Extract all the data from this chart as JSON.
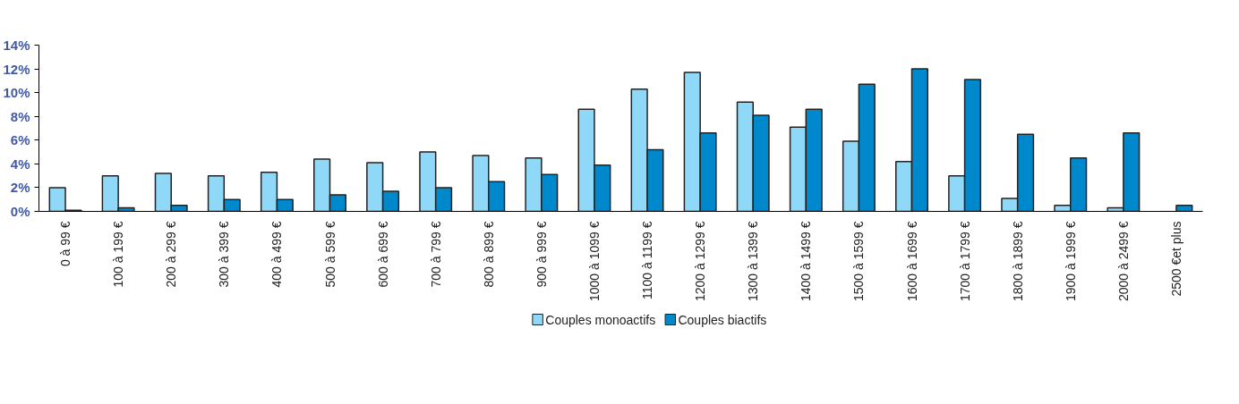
{
  "chart_data": {
    "type": "bar",
    "categories": [
      "0 à 99 €",
      "100 à 199 €",
      "200 à 299 €",
      "300 à 399 €",
      "400 à 499 €",
      "500 à 599 €",
      "600 à 699 €",
      "700 à 799 €",
      "800 à 899 €",
      "900 à 999 €",
      "1000 à 1099 €",
      "1100 à 1199 €",
      "1200 à 1299 €",
      "1300 à 1399 €",
      "1400 à 1499 €",
      "1500 à 1599 €",
      "1600 à 1699 €",
      "1700 à 1799 €",
      "1800 à 1899 €",
      "1900 à 1999 €",
      "2000 à 2499 €",
      "2500 €et plus"
    ],
    "series": [
      {
        "name": "Couples monoactifs",
        "color": "#8fd8f8",
        "values": [
          2.0,
          3.0,
          3.2,
          3.0,
          3.3,
          4.4,
          4.1,
          5.0,
          4.7,
          4.5,
          8.6,
          10.3,
          11.7,
          9.2,
          7.1,
          5.9,
          4.2,
          3.0,
          1.1,
          0.5,
          0.3,
          0
        ]
      },
      {
        "name": "Couples biactifs",
        "color": "#0088cc",
        "values": [
          0.1,
          0.3,
          0.5,
          1.0,
          1.0,
          1.4,
          1.7,
          2.0,
          2.5,
          3.1,
          3.9,
          5.2,
          6.6,
          8.1,
          8.6,
          10.7,
          12.0,
          11.1,
          6.5,
          4.5,
          6.6,
          0.5
        ]
      }
    ],
    "ylim": [
      0,
      14
    ],
    "yticks": [
      {
        "value": 0,
        "label": "0%"
      },
      {
        "value": 2,
        "label": "2%"
      },
      {
        "value": 4,
        "label": "4%"
      },
      {
        "value": 6,
        "label": "6%"
      },
      {
        "value": 8,
        "label": "8%"
      },
      {
        "value": 10,
        "label": "10%"
      },
      {
        "value": 12,
        "label": "12%"
      },
      {
        "value": 14,
        "label": "14%"
      }
    ],
    "grid": false,
    "legend": "bottom"
  }
}
